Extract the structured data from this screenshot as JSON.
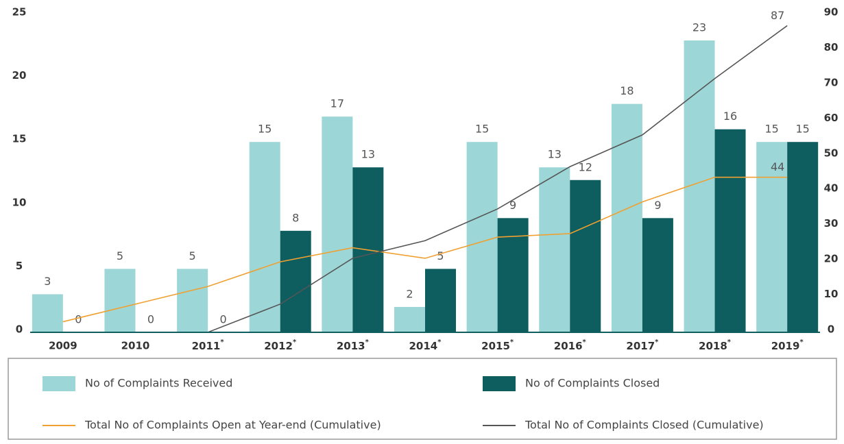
{
  "chart_data": {
    "type": "bar",
    "categories": [
      "2009",
      "2010",
      "2011*",
      "2012*",
      "2013*",
      "2014*",
      "2015*",
      "2016*",
      "2017*",
      "2018*",
      "2019*"
    ],
    "series": [
      {
        "name": "No of Complaints Received",
        "color": "#9dd6d6",
        "type": "bar",
        "values": [
          3,
          5,
          5,
          15,
          17,
          2,
          15,
          13,
          18,
          23,
          15
        ]
      },
      {
        "name": "No of Complaints Closed",
        "color": "#0e5e60",
        "type": "bar",
        "values": [
          0,
          0,
          0,
          8,
          13,
          5,
          9,
          12,
          9,
          16,
          15
        ]
      },
      {
        "name": "Total No of Complaints Open at Year-end (Cumulative)",
        "color": "#f0a030",
        "type": "line",
        "axis": "y2",
        "values": [
          3,
          8,
          13,
          20,
          24,
          21,
          27,
          28,
          37,
          44,
          44
        ]
      },
      {
        "name": "Total No of Complaints Closed (Cumulative)",
        "color": "#555555",
        "type": "line",
        "axis": "y2",
        "values": [
          0,
          0,
          0,
          8,
          21,
          26,
          35,
          47,
          56,
          72,
          87
        ]
      }
    ],
    "ylim": [
      0,
      25
    ],
    "yticks": [
      0,
      5,
      10,
      15,
      20,
      25
    ],
    "y2lim": [
      0,
      90
    ],
    "y2ticks": [
      0,
      10,
      20,
      30,
      40,
      50,
      60,
      70,
      80,
      90
    ]
  }
}
